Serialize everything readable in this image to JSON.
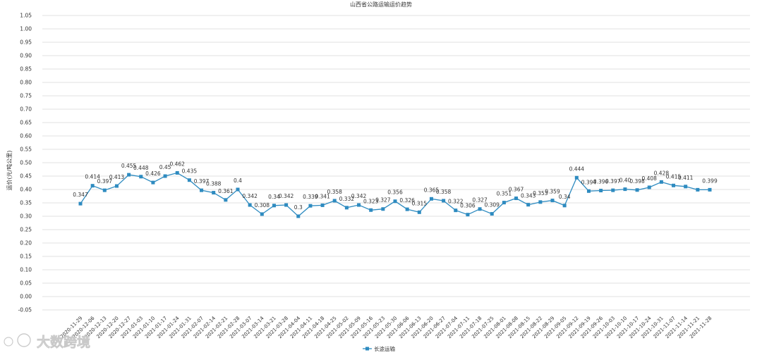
{
  "chart_data": {
    "type": "line",
    "title": "山西省公路运输运价趋势",
    "xlabel": "",
    "ylabel": "运价(元/吨公里)",
    "ylim": [
      -0.05,
      1.05
    ],
    "yticks": [
      "1.05",
      "1.00",
      "0.95",
      "0.90",
      "0.85",
      "0.80",
      "0.75",
      "0.70",
      "0.65",
      "0.60",
      "0.55",
      "0.50",
      "0.45",
      "0.40",
      "0.35",
      "0.30",
      "0.25",
      "0.20",
      "0.15",
      "0.10",
      "0.05",
      "0.00",
      "-0.05"
    ],
    "grid": true,
    "legend_position": "bottom-center",
    "series_color": "#2e8bc0",
    "categories": [
      "2020-11-29",
      "2020-12-06",
      "2020-12-13",
      "2020-12-20",
      "2020-12-27",
      "2021-01-03",
      "2021-01-10",
      "2021-01-17",
      "2021-01-24",
      "2021-01-31",
      "2021-02-07",
      "2021-02-14",
      "2021-02-21",
      "2021-02-28",
      "2021-03-07",
      "2021-03-14",
      "2021-03-21",
      "2021-03-28",
      "2021-04-04",
      "2021-04-11",
      "2021-04-18",
      "2021-04-25",
      "2021-05-02",
      "2021-05-09",
      "2021-05-16",
      "2021-05-23",
      "2021-05-30",
      "2021-06-06",
      "2021-06-13",
      "2021-06-20",
      "2021-06-27",
      "2021-07-04",
      "2021-07-11",
      "2021-07-18",
      "2021-07-25",
      "2021-08-01",
      "2021-08-08",
      "2021-08-15",
      "2021-08-22",
      "2021-08-29",
      "2021-09-05",
      "2021-09-12",
      "2021-09-19",
      "2021-09-26",
      "2021-10-03",
      "2021-10-10",
      "2021-10-17",
      "2021-10-24",
      "2021-10-31",
      "2021-11-07",
      "2021-11-14",
      "2021-11-21",
      "2021-11-28"
    ],
    "series": [
      {
        "name": "长途运输",
        "values": [
          0.347,
          0.414,
          0.397,
          0.413,
          0.455,
          0.448,
          0.426,
          0.45,
          0.462,
          0.435,
          0.397,
          0.388,
          0.361,
          0.4,
          0.342,
          0.308,
          0.34,
          0.342,
          0.3,
          0.339,
          0.341,
          0.358,
          0.332,
          0.342,
          0.323,
          0.327,
          0.356,
          0.326,
          0.315,
          0.365,
          0.358,
          0.322,
          0.306,
          0.327,
          0.309,
          0.351,
          0.367,
          0.343,
          0.353,
          0.359,
          0.34,
          0.444,
          0.394,
          0.396,
          0.397,
          0.401,
          0.398,
          0.408,
          0.428,
          0.415,
          0.411,
          0.399,
          0.399
        ],
        "labels": [
          "0.347",
          "0.414",
          "0.397",
          "0.413",
          "0.455",
          "0.448",
          "0.426",
          "0.45",
          "0.462",
          "0.435",
          "0.397",
          "0.388",
          "0.361",
          "0.4",
          "0.342",
          "0.308",
          "0.34",
          "0.342",
          "0.3",
          "0.339",
          "0.341",
          "0.358",
          "0.332",
          "0.342",
          "0.323",
          "0.327",
          "0.356",
          "0.326",
          "0.315",
          "0.365",
          "0.358",
          "0.322",
          "0.306",
          "0.327",
          "0.309",
          "0.351",
          "0.367",
          "0.343",
          "0.353",
          "0.359",
          "0.34",
          "0.444",
          "0.394",
          "0.396",
          "0.397",
          "0.40",
          "0.398",
          "0.408",
          "0.428",
          "0.415",
          "0.411",
          "",
          "0.399"
        ]
      }
    ]
  },
  "watermark": "大数跨境"
}
